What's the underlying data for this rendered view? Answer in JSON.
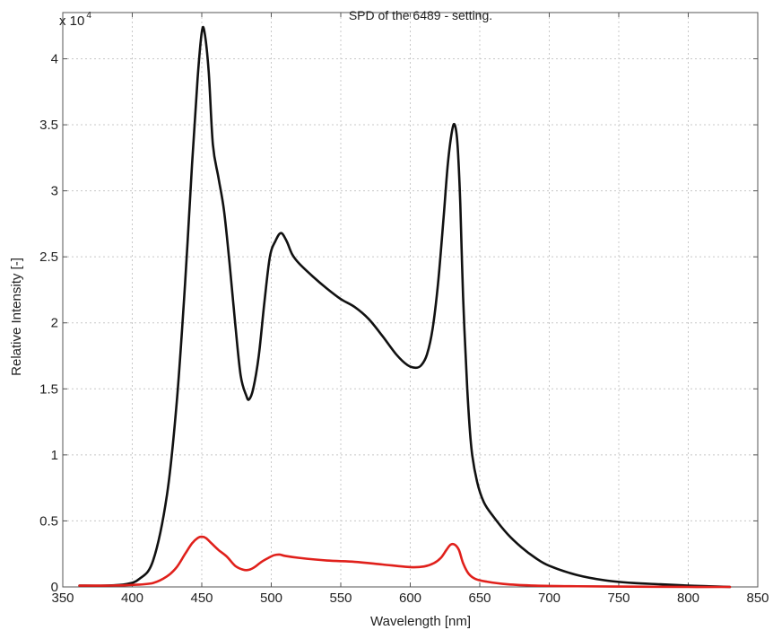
{
  "chart_data": {
    "type": "line",
    "title": "SPD of the 6489 - setting.",
    "xlabel": "Wavelength [nm]",
    "ylabel": "Relative Intensity [-]",
    "y_multiplier_base": "x 10",
    "y_multiplier_exp": "4",
    "xlim": [
      350,
      850
    ],
    "ylim": [
      0,
      4.35
    ],
    "grid": true,
    "x_ticks": [
      350,
      400,
      450,
      500,
      550,
      600,
      650,
      700,
      750,
      800,
      850
    ],
    "y_ticks": [
      0,
      0.5,
      1,
      1.5,
      2,
      2.5,
      3,
      3.5,
      4
    ],
    "y_tick_labels": [
      "0",
      "0.5",
      "1",
      "1.5",
      "2",
      "2.5",
      "3",
      "3.5",
      "4"
    ],
    "series": [
      {
        "color": "#111111",
        "x": [
          362,
          380,
          395,
          405,
          415,
          425,
          432,
          438,
          443,
          447,
          450,
          452,
          455,
          458,
          462,
          466,
          470,
          474,
          478,
          482,
          484,
          487,
          491,
          495,
          499,
          503,
          507,
          511,
          515,
          520,
          530,
          540,
          550,
          560,
          570,
          580,
          590,
          598,
          604,
          608,
          612,
          616,
          620,
          624,
          627,
          630,
          632,
          634,
          636,
          638,
          641,
          644,
          648,
          653,
          660,
          670,
          680,
          690,
          700,
          720,
          740,
          760,
          780,
          800,
          815,
          830
        ],
        "y": [
          0.01,
          0.01,
          0.02,
          0.06,
          0.2,
          0.7,
          1.4,
          2.3,
          3.2,
          3.85,
          4.2,
          4.2,
          3.9,
          3.35,
          3.1,
          2.85,
          2.45,
          2.0,
          1.6,
          1.45,
          1.42,
          1.5,
          1.75,
          2.15,
          2.5,
          2.62,
          2.68,
          2.62,
          2.52,
          2.45,
          2.35,
          2.26,
          2.18,
          2.12,
          2.03,
          1.9,
          1.76,
          1.68,
          1.66,
          1.68,
          1.76,
          1.95,
          2.3,
          2.8,
          3.2,
          3.45,
          3.5,
          3.35,
          2.9,
          2.2,
          1.5,
          1.05,
          0.8,
          0.64,
          0.53,
          0.4,
          0.3,
          0.22,
          0.16,
          0.09,
          0.05,
          0.03,
          0.02,
          0.01,
          0.005,
          0.0
        ]
      },
      {
        "color": "#e0201b",
        "x": [
          362,
          380,
          400,
          415,
          425,
          432,
          438,
          443,
          447,
          450,
          453,
          457,
          462,
          468,
          474,
          480,
          484,
          488,
          493,
          498,
          502,
          506,
          510,
          520,
          540,
          560,
          580,
          600,
          610,
          617,
          622,
          626,
          629,
          632,
          635,
          638,
          642,
          647,
          655,
          670,
          690,
          720,
          760,
          800,
          830
        ],
        "y": [
          0.01,
          0.01,
          0.015,
          0.03,
          0.08,
          0.15,
          0.25,
          0.33,
          0.37,
          0.38,
          0.37,
          0.33,
          0.28,
          0.23,
          0.16,
          0.13,
          0.13,
          0.15,
          0.19,
          0.22,
          0.24,
          0.245,
          0.235,
          0.22,
          0.2,
          0.19,
          0.17,
          0.15,
          0.155,
          0.18,
          0.22,
          0.28,
          0.32,
          0.32,
          0.28,
          0.18,
          0.1,
          0.06,
          0.04,
          0.02,
          0.01,
          0.005,
          0.002,
          0.0,
          0.0
        ]
      }
    ]
  }
}
